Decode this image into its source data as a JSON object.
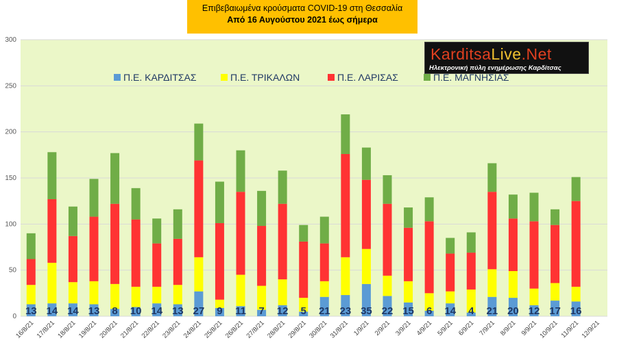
{
  "title": {
    "line1": "Επιβεβαιωμένα κρούσματα COVID-19 στη Θεσσαλία",
    "line2": "Από 16 Αυγούστου 2021 έως σήμερα"
  },
  "logo": {
    "name": "KarditsaLive.Net",
    "tagline": "Ηλεκτρονική πύλη ενημέρωσης Καρδίτσας"
  },
  "colors": {
    "plot_bg": "#ebf7c8",
    "grid": "#d9d9d9",
    "karditsa": "#5b9bd5",
    "trikala": "#ffff00",
    "larisa": "#ff3333",
    "magnisia": "#70ad47",
    "label_text": "#1f3864"
  },
  "chart_data": {
    "type": "bar",
    "stacked": true,
    "ylim": [
      0,
      300
    ],
    "yticks": [
      0,
      50,
      100,
      150,
      200,
      250,
      300
    ],
    "grid": true,
    "legend_position": "top-left",
    "categories": [
      "16/8/21",
      "17/8/21",
      "18/8/21",
      "19/8/21",
      "20/8/21",
      "21/8/21",
      "22/8/21",
      "23/8/21",
      "24/8/21",
      "25/8/21",
      "26/8/21",
      "27/8/21",
      "28/8/21",
      "29/8/21",
      "30/8/21",
      "31/8/21",
      "1/9/21",
      "2/9/21",
      "3/9/21",
      "4/9/21",
      "5/9/21",
      "6/9/21",
      "7/9/21",
      "8/9/21",
      "9/9/21",
      "10/9/21",
      "11/9/21",
      "12/9/21"
    ],
    "series": [
      {
        "name": "Π.Ε. ΚΑΡΔΙΤΣΑΣ",
        "color": "#5b9bd5",
        "values": [
          13,
          14,
          14,
          13,
          8,
          10,
          14,
          13,
          27,
          9,
          11,
          7,
          12,
          5,
          21,
          23,
          35,
          22,
          15,
          6,
          14,
          4,
          21,
          20,
          12,
          17,
          16,
          null
        ]
      },
      {
        "name": "Π.Ε. ΤΡΙΚΑΛΩΝ",
        "color": "#ffff00",
        "values": [
          21,
          44,
          23,
          25,
          27,
          22,
          18,
          21,
          37,
          9,
          34,
          26,
          28,
          15,
          17,
          41,
          38,
          22,
          23,
          19,
          13,
          25,
          30,
          29,
          18,
          19,
          16,
          null
        ]
      },
      {
        "name": "Π.Ε. ΛΑΡΙΣΑΣ",
        "color": "#ff3333",
        "values": [
          28,
          69,
          50,
          70,
          87,
          73,
          47,
          50,
          105,
          83,
          90,
          65,
          82,
          61,
          41,
          112,
          75,
          78,
          58,
          78,
          41,
          40,
          84,
          57,
          73,
          63,
          93,
          null
        ]
      },
      {
        "name": "Π.Ε. ΜΑΓΝΗΣΙΑΣ",
        "color": "#70ad47",
        "values": [
          28,
          51,
          32,
          41,
          55,
          34,
          27,
          32,
          40,
          45,
          45,
          38,
          36,
          18,
          29,
          43,
          35,
          31,
          22,
          26,
          17,
          22,
          31,
          26,
          31,
          17,
          26,
          null
        ]
      }
    ],
    "data_labels_series": "Π.Ε. ΚΑΡΔΙΤΣΑΣ",
    "data_labels": [
      "13",
      "14",
      "14",
      "13",
      "8",
      "10",
      "14",
      "13",
      "27",
      "9",
      "11",
      "7",
      "12",
      "5",
      "21",
      "23",
      "35",
      "22",
      "15",
      "6",
      "14",
      "4",
      "21",
      "20",
      "12",
      "17",
      "16",
      ""
    ]
  }
}
